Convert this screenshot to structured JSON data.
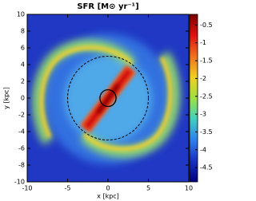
{
  "chart_data": {
    "type": "heatmap",
    "title": "SFR [M⊙ yr⁻¹]",
    "xlabel": "x [kpc]",
    "ylabel": "y [kpc]",
    "xlim": [
      -10,
      10
    ],
    "ylim": [
      -10,
      10
    ],
    "xticks": [
      -10,
      -5,
      0,
      5,
      10
    ],
    "yticks": [
      -10,
      -8,
      -6,
      -4,
      -2,
      0,
      2,
      4,
      6,
      8,
      10
    ],
    "colorbar": {
      "lim": [
        -4.9,
        -0.2
      ],
      "ticks": [
        -0.5,
        -1,
        -1.5,
        -2,
        -2.5,
        -3,
        -3.5,
        -4,
        -4.5
      ],
      "colors": [
        "#7a0000",
        "#e01010",
        "#f07020",
        "#f0d020",
        "#a0e040",
        "#40d0c0",
        "#3080f0",
        "#1830c0",
        "#000080"
      ]
    },
    "circles": [
      {
        "radius": 5,
        "style": "dashed"
      },
      {
        "radius": 1,
        "style": "solid"
      }
    ]
  }
}
